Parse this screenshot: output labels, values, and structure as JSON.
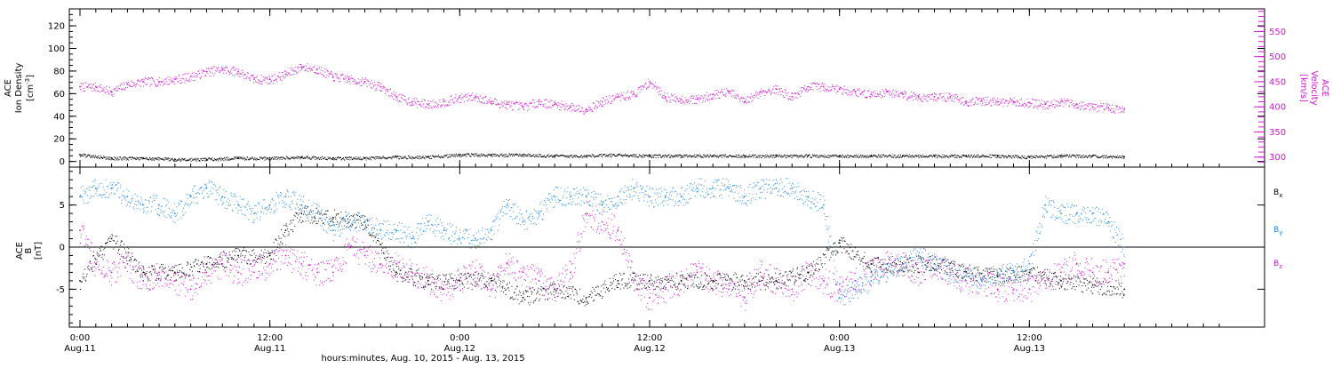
{
  "colors": {
    "black": "#000000",
    "magenta": "#d216d2",
    "blue": "#1e88e5"
  },
  "chart_data": [
    {
      "type": "scatter",
      "panel": "top",
      "left_axis": {
        "label_lines": [
          "ACE",
          "Ion Density"
        ],
        "unit_prefix": "[cm",
        "unit_exp": "-3",
        "unit_suffix": "]",
        "ylim": [
          -5,
          135
        ],
        "ticks": [
          0,
          20,
          40,
          60,
          80,
          100,
          120
        ]
      },
      "right_axis": {
        "label_lines": [
          "ACE",
          "Velocity",
          "[km/s]"
        ],
        "ylim": [
          280,
          595
        ],
        "ticks": [
          300,
          350,
          400,
          450,
          500,
          550
        ]
      },
      "series": [
        {
          "color": "magenta",
          "axis": "right",
          "x_hours": [
            0,
            1,
            2,
            3,
            4,
            5,
            6,
            7,
            8,
            9,
            10,
            11,
            12,
            13,
            14,
            15,
            16,
            17,
            18,
            19,
            20,
            21,
            22,
            23,
            24,
            25,
            26,
            27,
            28,
            29,
            30,
            31,
            32,
            33,
            34,
            35,
            36,
            37,
            38,
            39,
            40,
            41,
            42,
            43,
            44,
            45,
            46,
            47,
            48,
            49,
            50,
            51,
            52,
            53,
            54,
            55,
            56,
            57,
            58,
            59,
            60,
            61,
            62,
            63,
            64,
            65,
            66
          ],
          "values": [
            440,
            440,
            430,
            445,
            450,
            450,
            455,
            460,
            470,
            475,
            470,
            455,
            455,
            465,
            480,
            475,
            460,
            455,
            450,
            440,
            420,
            410,
            405,
            410,
            418,
            420,
            410,
            405,
            400,
            410,
            405,
            400,
            395,
            410,
            420,
            425,
            450,
            420,
            415,
            415,
            425,
            430,
            410,
            430,
            435,
            420,
            440,
            440,
            435,
            430,
            425,
            430,
            425,
            420,
            420,
            420,
            410,
            412,
            410,
            410,
            408,
            405,
            410,
            405,
            400,
            398,
            395
          ]
        },
        {
          "color": "black",
          "axis": "left",
          "x_hours": [
            0,
            2,
            4,
            6,
            8,
            10,
            12,
            14,
            16,
            18,
            20,
            22,
            24,
            26,
            28,
            30,
            32,
            34,
            36,
            38,
            40,
            42,
            44,
            46,
            48,
            50,
            52,
            54,
            56,
            58,
            60,
            62,
            64,
            66
          ],
          "values": [
            6,
            3,
            3,
            2,
            2,
            3,
            3,
            4,
            3,
            3,
            4,
            4,
            6,
            6,
            6,
            5,
            5,
            6,
            5,
            5,
            5,
            5,
            5,
            5,
            5,
            5,
            5,
            5,
            5,
            5,
            4,
            5,
            5,
            4
          ]
        }
      ]
    },
    {
      "type": "scatter",
      "panel": "bottom",
      "left_axis": {
        "label_lines": [
          "ACE",
          "B",
          "[nT]"
        ],
        "ylim": [
          -9.5,
          9.5
        ],
        "ticks": [
          -5,
          0,
          5
        ]
      },
      "legend": [
        {
          "label": "B",
          "sub": "x",
          "color": "black"
        },
        {
          "label": "B",
          "sub": "y",
          "color": "blue"
        },
        {
          "label": "B",
          "sub": "z",
          "color": "magenta"
        }
      ],
      "legend_position": "right",
      "zero_line": true,
      "series": [
        {
          "name": "Bx",
          "color": "black",
          "x_hours": [
            0,
            2,
            4,
            6,
            8,
            10,
            12,
            13,
            14,
            16,
            18,
            20,
            22,
            24,
            26,
            28,
            30,
            32,
            34,
            36,
            38,
            40,
            42,
            44,
            46,
            48,
            50,
            52,
            54,
            56,
            58,
            60,
            62,
            64,
            66
          ],
          "values": [
            -4,
            1,
            -3,
            -3,
            -2,
            -1,
            -1,
            2,
            4,
            3.5,
            3,
            -3,
            -4,
            -4,
            -4,
            -6,
            -5,
            -6,
            -4,
            -4,
            -4,
            -4,
            -4,
            -4,
            -3,
            0.5,
            -2,
            -2,
            -2,
            -3,
            -3.5,
            -3,
            -4,
            -4.5,
            -5
          ]
        },
        {
          "name": "By",
          "color": "blue",
          "x_hours": [
            0,
            1,
            2,
            3,
            4,
            5,
            6,
            7,
            8,
            9,
            10,
            11,
            12,
            13,
            14,
            15,
            16,
            17,
            18,
            19,
            20,
            21,
            22,
            23,
            24,
            25,
            26,
            27,
            28,
            29,
            30,
            31,
            32,
            33,
            34,
            35,
            36,
            37,
            38,
            39,
            40,
            41,
            42,
            43,
            44,
            45,
            46,
            47,
            48,
            49,
            50,
            51,
            52,
            53,
            54,
            55,
            56,
            57,
            58,
            59,
            60,
            61,
            62,
            63,
            64,
            65,
            66
          ],
          "values": [
            6,
            7,
            7,
            6,
            5,
            5,
            4,
            6,
            7,
            6,
            5,
            4,
            5,
            6,
            5,
            4,
            2,
            3,
            3,
            2,
            2,
            1,
            3,
            2,
            1,
            1,
            2,
            5,
            3,
            4,
            6,
            6,
            6,
            5,
            6,
            7,
            6,
            6,
            6,
            7,
            7,
            7,
            6,
            7,
            7,
            7,
            6,
            5,
            -6,
            -5,
            -4,
            -3,
            -2,
            -1,
            -2,
            -3,
            -3,
            -4,
            -3,
            -3,
            -2,
            5,
            4,
            4,
            4,
            3,
            0
          ]
        },
        {
          "name": "Bz",
          "color": "magenta",
          "x_hours": [
            0,
            1,
            2,
            3,
            4,
            5,
            6,
            7,
            8,
            9,
            10,
            11,
            12,
            13,
            14,
            15,
            16,
            17,
            18,
            19,
            20,
            21,
            22,
            23,
            24,
            25,
            26,
            27,
            28,
            29,
            30,
            31,
            32,
            33,
            34,
            35,
            36,
            37,
            38,
            39,
            40,
            41,
            42,
            43,
            44,
            45,
            46,
            47,
            48,
            49,
            50,
            51,
            52,
            53,
            54,
            55,
            56,
            57,
            58,
            59,
            60,
            61,
            62,
            63,
            64,
            65,
            66
          ],
          "values": [
            2,
            -2,
            -3,
            -2,
            -4,
            -3,
            -4,
            -5,
            -3,
            -2,
            -3,
            -3,
            -2,
            -1,
            -2,
            -3,
            -3,
            0,
            -1,
            -2,
            -2,
            -3,
            -4,
            -5,
            -4,
            -3,
            -5,
            -2,
            -3,
            -4,
            -5,
            -3,
            4,
            3,
            2,
            -4,
            -6,
            -5,
            -4,
            -3,
            -4,
            -5,
            -6,
            -3,
            -4,
            -5,
            -3,
            -4,
            -5,
            -4,
            -3,
            -2,
            -2,
            -3,
            -2,
            -3,
            -4,
            -4,
            -5,
            -5,
            -5,
            -4,
            -3,
            -2,
            -3,
            -3,
            -2
          ]
        }
      ]
    }
  ],
  "x_axis": {
    "hours_span": [
      0,
      72
    ],
    "tick_hours": [
      0,
      12,
      24,
      36,
      48,
      60
    ],
    "tick_labels": [
      {
        "time": "0:00",
        "date": "Aug.11"
      },
      {
        "time": "12:00",
        "date": "Aug.11"
      },
      {
        "time": "0:00",
        "date": "Aug.12"
      },
      {
        "time": "12:00",
        "date": "Aug.12"
      },
      {
        "time": "0:00",
        "date": "Aug.13"
      },
      {
        "time": "12:00",
        "date": "Aug.13"
      }
    ],
    "title": "hours:minutes, Aug. 10, 2015 - Aug. 13, 2015"
  }
}
